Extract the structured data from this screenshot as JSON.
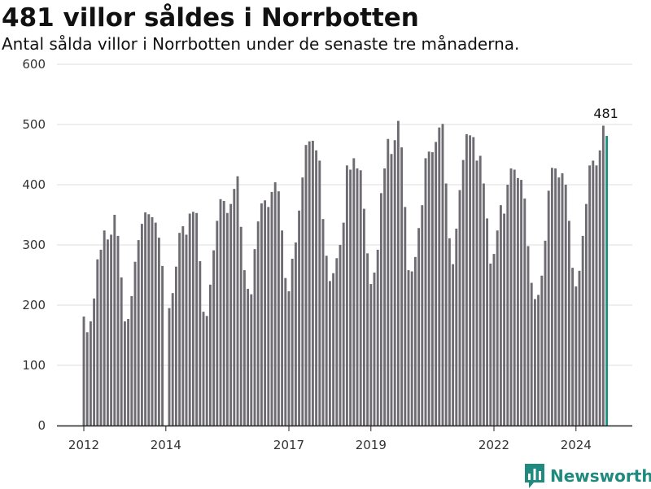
{
  "header": {
    "title": "481 villor såldes i Norrbotten",
    "subtitle": "Antal sålda villor i Norrbotten under de senaste tre månaderna."
  },
  "brand": {
    "name": "Newsworthy",
    "icon": "newsworthy-logo-icon",
    "color": "#1f8a7d"
  },
  "colors": {
    "bar": "#6e6c72",
    "highlight": "#1a9181",
    "grid": "#dddddd",
    "axis": "#222222"
  },
  "chart_data": {
    "type": "bar",
    "x_start": "2012-01",
    "x_end": "2024-10",
    "xlabel": "",
    "ylabel": "",
    "ylim": [
      0,
      600
    ],
    "yticks": [
      0,
      100,
      200,
      300,
      400,
      500,
      600
    ],
    "xticks": [
      "2012",
      "2014",
      "2017",
      "2019",
      "2022",
      "2024"
    ],
    "grid": true,
    "last_label": "481",
    "values": [
      181,
      155,
      173,
      211,
      276,
      292,
      324,
      309,
      317,
      350,
      315,
      246,
      173,
      177,
      215,
      272,
      308,
      335,
      354,
      351,
      346,
      337,
      312,
      265,
      null,
      195,
      220,
      264,
      320,
      331,
      317,
      352,
      355,
      353,
      273,
      189,
      182,
      234,
      291,
      340,
      376,
      373,
      353,
      368,
      393,
      414,
      330,
      258,
      227,
      218,
      293,
      339,
      369,
      374,
      363,
      388,
      404,
      389,
      324,
      245,
      223,
      277,
      304,
      357,
      412,
      466,
      472,
      473,
      457,
      440,
      343,
      282,
      240,
      253,
      278,
      300,
      337,
      432,
      425,
      444,
      427,
      424,
      360,
      286,
      235,
      254,
      292,
      386,
      427,
      476,
      451,
      474,
      506,
      462,
      363,
      258,
      256,
      280,
      328,
      366,
      444,
      455,
      454,
      471,
      495,
      501,
      402,
      311,
      268,
      327,
      391,
      441,
      484,
      482,
      479,
      440,
      448,
      402,
      344,
      269,
      285,
      324,
      366,
      352,
      400,
      427,
      425,
      411,
      408,
      377,
      298,
      237,
      210,
      217,
      249,
      307,
      390,
      428,
      427,
      412,
      419,
      400,
      340,
      262,
      231,
      257,
      315,
      368,
      432,
      440,
      432,
      457,
      498,
      481
    ]
  }
}
